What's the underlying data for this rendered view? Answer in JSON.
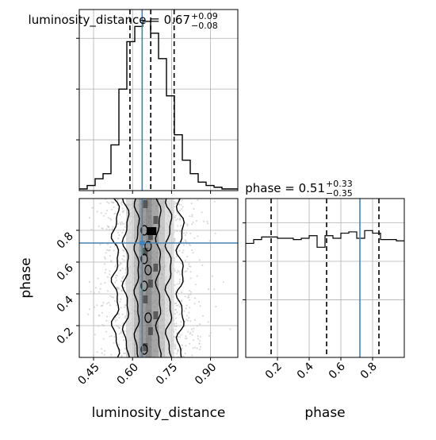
{
  "chart_data": [
    {
      "type": "histogram",
      "panel": "luminosity_distance-marginal",
      "title": {
        "prefix": "luminosity_distance = 0.67",
        "plus": "+0.09",
        "minus": "−0.08"
      },
      "bin_edges_start": 0.395,
      "bin_width": 0.0305,
      "counts": [
        0.01,
        0.03,
        0.07,
        0.1,
        0.27,
        0.6,
        0.88,
        0.97,
        1.0,
        0.93,
        0.78,
        0.56,
        0.33,
        0.18,
        0.1,
        0.05,
        0.03,
        0.02,
        0.01,
        0.01
      ],
      "xlim": [
        0.395,
        1.005
      ],
      "ylim": [
        0,
        1.07
      ],
      "quantile_lines": [
        0.59,
        0.67,
        0.76
      ],
      "truth": 0.637,
      "grid": true
    },
    {
      "type": "histogram",
      "panel": "phase-marginal",
      "title": {
        "prefix": "phase = 0.51",
        "plus": "+0.33",
        "minus": "−0.35"
      },
      "bin_edges_start": 0.0,
      "bin_width": 0.05,
      "counts": [
        0.89,
        0.92,
        0.94,
        0.94,
        0.93,
        0.93,
        0.92,
        0.93,
        0.95,
        0.86,
        0.95,
        0.93,
        0.97,
        0.98,
        0.93,
        0.99,
        0.97,
        0.92,
        0.92,
        0.91
      ],
      "xlim": [
        0.0,
        1.0
      ],
      "ylim": [
        0,
        1.24
      ],
      "quantile_lines": [
        0.16,
        0.51,
        0.84
      ],
      "truth": 0.72,
      "grid": true,
      "xticks": [
        "0.2",
        "0.4",
        "0.6",
        "0.8"
      ]
    },
    {
      "type": "scatter-contour",
      "panel": "joint",
      "xlabel": "luminosity_distance",
      "ylabel": "phase",
      "xlim": [
        0.395,
        1.005
      ],
      "ylim": [
        0.0,
        1.0
      ],
      "xticks": [
        "0.45",
        "0.60",
        "0.75",
        "0.90"
      ],
      "yticks": [
        "0.2",
        "0.4",
        "0.6",
        "0.8"
      ],
      "truth": {
        "x": 0.637,
        "y": 0.72
      },
      "contour_levels": 3,
      "grid": true
    }
  ],
  "colors": {
    "truth": "#4682b4",
    "hist": "#000000",
    "grid": "#b0b0b0",
    "points": "#bdbdbd",
    "contour": "#000000"
  }
}
